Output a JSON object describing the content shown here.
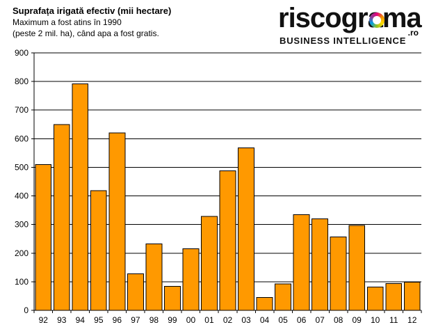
{
  "chart_data": {
    "type": "bar",
    "title": "Suprafața irigată efectiv (mii hectare)",
    "subtitle_lines": [
      "Maximum a fost atins în 1990",
      "(peste 2 mil. ha), când apa a fost gratis."
    ],
    "categories": [
      "92",
      "93",
      "94",
      "95",
      "96",
      "97",
      "98",
      "99",
      "00",
      "01",
      "02",
      "03",
      "04",
      "05",
      "06",
      "07",
      "08",
      "09",
      "10",
      "11",
      "12"
    ],
    "values": [
      510,
      650,
      792,
      418,
      620,
      128,
      232,
      84,
      215,
      328,
      488,
      568,
      45,
      93,
      335,
      320,
      257,
      297,
      82,
      94,
      98
    ],
    "ylim": [
      0,
      900
    ],
    "yticks": [
      0,
      100,
      200,
      300,
      400,
      500,
      600,
      700,
      800,
      900
    ],
    "grid": true,
    "legend": "none",
    "bar_color": "#FF9900",
    "xlabel": "",
    "ylabel": ""
  },
  "logo": {
    "word": "riscograma",
    "suffix": ".ro",
    "tagline": "BUSINESS INTELLIGENCE"
  }
}
